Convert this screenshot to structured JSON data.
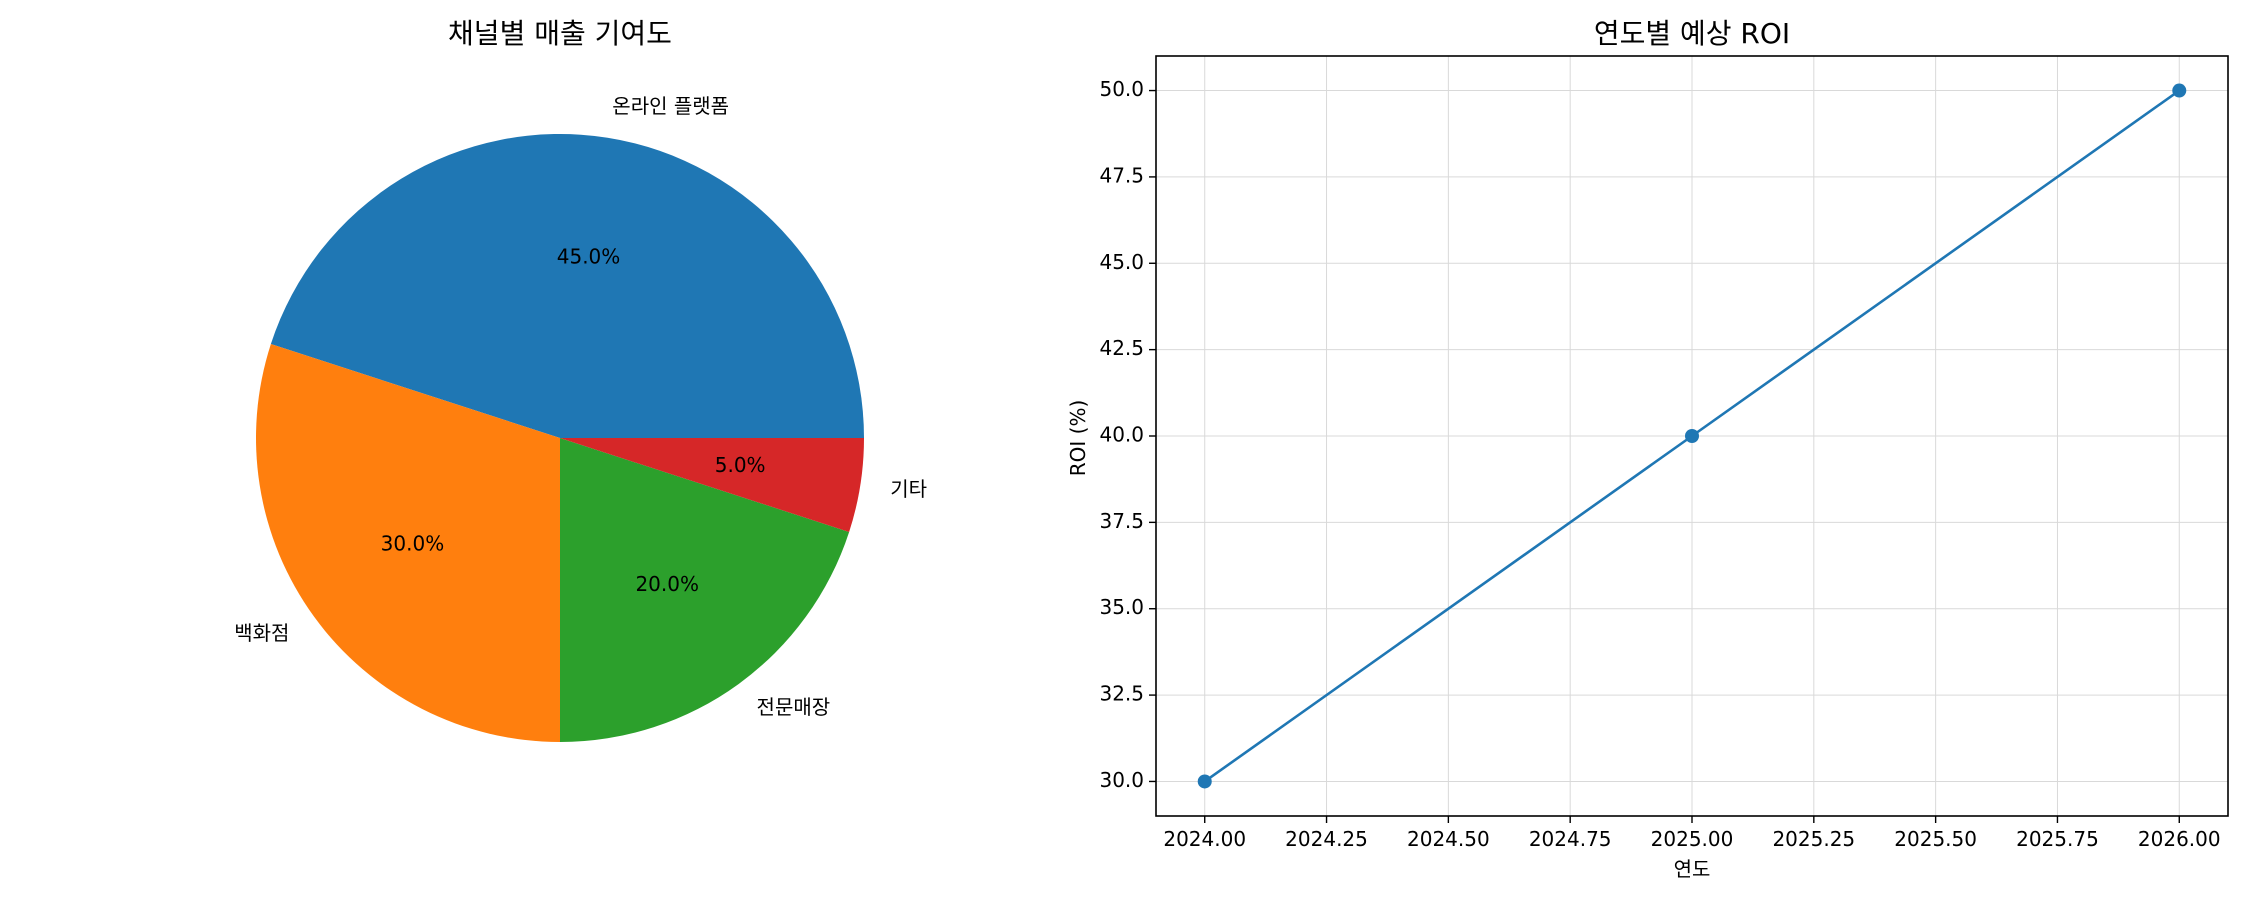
{
  "chart_data": [
    {
      "type": "pie",
      "title": "채널별 매출 기여도",
      "slices": [
        {
          "label": "온라인 플랫폼",
          "value": 45.0,
          "pct_label": "45.0%",
          "color": "#1f77b4"
        },
        {
          "label": "백화점",
          "value": 30.0,
          "pct_label": "30.0%",
          "color": "#ff7f0e"
        },
        {
          "label": "전문매장",
          "value": 20.0,
          "pct_label": "20.0%",
          "color": "#2ca02c"
        },
        {
          "label": "기타",
          "value": 5.0,
          "pct_label": "5.0%",
          "color": "#d62728"
        }
      ]
    },
    {
      "type": "line",
      "title": "연도별 예상 ROI",
      "xlabel": "연도",
      "ylabel": "ROI (%)",
      "x": [
        2024,
        2025,
        2026
      ],
      "series": [
        {
          "values": [
            30.0,
            40.0,
            50.0
          ],
          "color": "#1f77b4",
          "marker": "circle"
        }
      ],
      "xlim": [
        2023.9,
        2026.1
      ],
      "ylim": [
        29.0,
        51.0
      ],
      "xticks": [
        "2024.00",
        "2024.25",
        "2024.50",
        "2024.75",
        "2025.00",
        "2025.25",
        "2025.50",
        "2025.75",
        "2026.00"
      ],
      "yticks": [
        "30.0",
        "32.5",
        "35.0",
        "37.5",
        "40.0",
        "42.5",
        "45.0",
        "47.5",
        "50.0"
      ],
      "grid": true
    }
  ]
}
